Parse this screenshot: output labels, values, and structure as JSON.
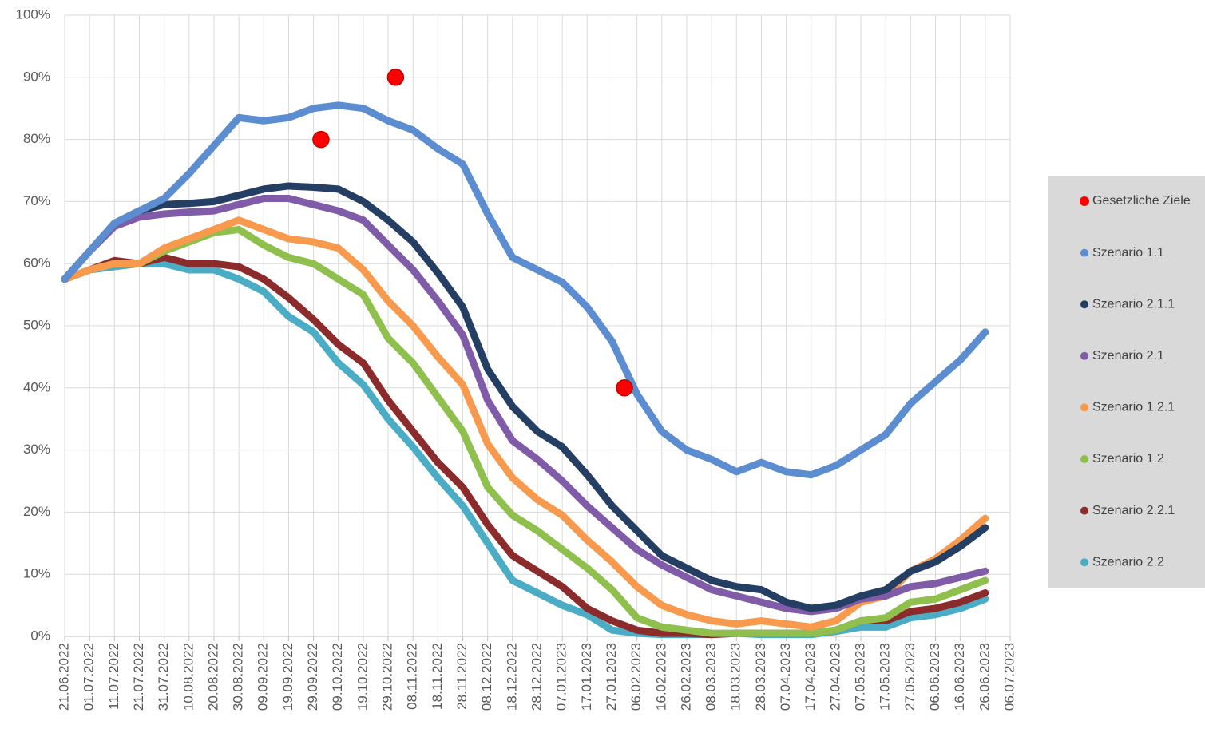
{
  "chart_data": {
    "type": "line",
    "x": [
      "21.06.2022",
      "01.07.2022",
      "11.07.2022",
      "21.07.2022",
      "31.07.2022",
      "10.08.2022",
      "20.08.2022",
      "30.08.2022",
      "09.09.2022",
      "19.09.2022",
      "29.09.2022",
      "09.10.2022",
      "19.10.2022",
      "29.10.2022",
      "08.11.2022",
      "18.11.2022",
      "28.11.2022",
      "08.12.2022",
      "18.12.2022",
      "28.12.2022",
      "07.01.2023",
      "17.01.2023",
      "27.01.2023",
      "06.02.2023",
      "16.02.2023",
      "26.02.2023",
      "08.03.2023",
      "18.03.2023",
      "28.03.2023",
      "07.04.2023",
      "17.04.2023",
      "27.04.2023",
      "07.05.2023",
      "17.05.2023",
      "27.05.2023",
      "06.06.2023",
      "16.06.2023",
      "26.06.2023"
    ],
    "series": [
      {
        "name": "Gesetzliche Ziele",
        "color": "#ff0000",
        "marker": "point",
        "x": [
          "02.10.2022",
          "01.11.2022",
          "01.02.2023"
        ],
        "values": [
          80,
          90,
          40
        ]
      },
      {
        "name": "Szenario 1.1",
        "color": "#5b8dd0",
        "values": [
          57.5,
          62,
          66.5,
          68.5,
          70.5,
          74.5,
          79,
          83.5,
          83,
          83.5,
          85,
          85.5,
          85,
          83,
          81.5,
          78.5,
          76,
          68,
          61,
          59,
          57,
          53,
          47.5,
          39,
          33,
          30,
          28.5,
          26.5,
          28,
          26.5,
          26,
          27.5,
          30,
          32.5,
          37.5,
          41,
          44.5,
          49
        ]
      },
      {
        "name": "Szenario 2.1.1",
        "color": "#243f63",
        "values": [
          57.5,
          62,
          66.5,
          68.5,
          69.5,
          69.7,
          70,
          71,
          72,
          72.5,
          72.3,
          72,
          70,
          67,
          63.5,
          58.5,
          53,
          43,
          37,
          33,
          30.5,
          26,
          21,
          17,
          13,
          11,
          9,
          8,
          7.5,
          5.5,
          4.5,
          5,
          6.5,
          7.5,
          10.5,
          12,
          14.5,
          17.5
        ]
      },
      {
        "name": "Szenario 2.1",
        "color": "#7f5ba8",
        "values": [
          57.5,
          62,
          66,
          67.5,
          68,
          68.3,
          68.5,
          69.5,
          70.5,
          70.5,
          69.5,
          68.5,
          67,
          63,
          59,
          54,
          48.5,
          38,
          31.5,
          28.5,
          25,
          21,
          17.5,
          14,
          11.5,
          9.5,
          7.5,
          6.5,
          5.5,
          4.5,
          4,
          4.5,
          6,
          6.5,
          8,
          8.5,
          9.5,
          10.5
        ]
      },
      {
        "name": "Szenario 1.2.1",
        "color": "#f79a4e",
        "values": [
          57.5,
          59,
          60,
          60,
          62.5,
          64,
          65.5,
          67,
          65.5,
          64,
          63.5,
          62.5,
          59,
          54,
          50,
          45,
          40.5,
          31,
          25.5,
          22,
          19.5,
          15.5,
          12,
          8,
          5,
          3.5,
          2.5,
          2,
          2.5,
          2,
          1.5,
          2.5,
          5.5,
          6.5,
          10.5,
          12.5,
          15.5,
          19
        ]
      },
      {
        "name": "Szenario 1.2",
        "color": "#8fc04d",
        "values": [
          57.5,
          59,
          60,
          60,
          62,
          63.5,
          65,
          65.5,
          63,
          61,
          60,
          57.5,
          55,
          48,
          44,
          38.5,
          33,
          24,
          19.5,
          17,
          14,
          11,
          7.5,
          3,
          1.5,
          1,
          0.5,
          0.5,
          0.5,
          0.5,
          0.5,
          1,
          2.5,
          3,
          5.5,
          6,
          7.5,
          9
        ]
      },
      {
        "name": "Szenario 2.2.1",
        "color": "#8b2b2b",
        "values": [
          57.5,
          59,
          60.5,
          60,
          61,
          60,
          60,
          59.5,
          57.5,
          54.5,
          51,
          47,
          44,
          38,
          33,
          28,
          24,
          18,
          13,
          10.5,
          8,
          4.5,
          2.5,
          1,
          0.5,
          0.5,
          0.3,
          0.5,
          0.5,
          0.5,
          0.5,
          1,
          2.5,
          2.5,
          4,
          4.5,
          5.5,
          7
        ]
      },
      {
        "name": "Szenario 2.2",
        "color": "#4bacc6",
        "values": [
          57.5,
          59,
          59.5,
          60,
          60,
          59,
          59,
          57.5,
          55.5,
          51.5,
          49,
          44,
          40.5,
          35,
          30.5,
          25.5,
          21,
          15,
          9,
          7,
          5,
          3.5,
          1,
          0.5,
          0.3,
          0.3,
          0.3,
          0.5,
          0.3,
          0.3,
          0.3,
          0.8,
          1.5,
          1.5,
          3,
          3.5,
          4.5,
          6
        ]
      }
    ],
    "xlim": [
      "21.06.2022",
      "06.07.2023"
    ],
    "xticks": [
      "21.06.2022",
      "01.07.2022",
      "11.07.2022",
      "21.07.2022",
      "31.07.2022",
      "10.08.2022",
      "20.08.2022",
      "30.08.2022",
      "09.09.2022",
      "19.09.2022",
      "29.09.2022",
      "09.10.2022",
      "19.10.2022",
      "29.10.2022",
      "08.11.2022",
      "18.11.2022",
      "28.11.2022",
      "08.12.2022",
      "18.12.2022",
      "28.12.2022",
      "07.01.2023",
      "17.01.2023",
      "27.01.2023",
      "06.02.2023",
      "16.02.2023",
      "26.02.2023",
      "08.03.2023",
      "18.03.2023",
      "28.03.2023",
      "07.04.2023",
      "17.04.2023",
      "27.04.2023",
      "07.05.2023",
      "17.05.2023",
      "27.05.2023",
      "06.06.2023",
      "16.06.2023",
      "26.06.2023",
      "06.07.2023"
    ],
    "ylim": [
      0,
      100
    ],
    "yticks": [
      {
        "value": 0,
        "label": "0%"
      },
      {
        "value": 10,
        "label": "10%"
      },
      {
        "value": 20,
        "label": "20%"
      },
      {
        "value": 30,
        "label": "30%"
      },
      {
        "value": 40,
        "label": "40%"
      },
      {
        "value": 50,
        "label": "50%"
      },
      {
        "value": 60,
        "label": "60%"
      },
      {
        "value": 70,
        "label": "70%"
      },
      {
        "value": 80,
        "label": "80%"
      },
      {
        "value": 90,
        "label": "90%"
      },
      {
        "value": 100,
        "label": "100%"
      }
    ],
    "grid": true,
    "legend": "right"
  }
}
